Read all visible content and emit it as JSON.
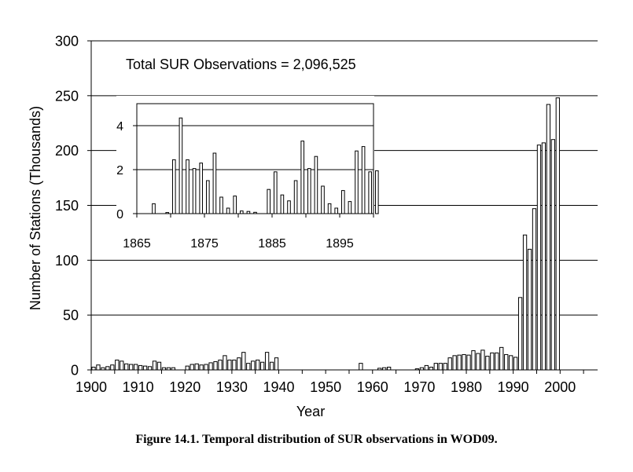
{
  "caption": "Figure 14.1. Temporal distribution of SUR observations in WOD09.",
  "chart_data": [
    {
      "type": "bar",
      "annotation": "Total SUR Observations = 2,096,525",
      "xlabel": "Year",
      "ylabel": "Number of Stations (Thousands)",
      "xlim": [
        1900,
        2008
      ],
      "ylim": [
        0,
        300
      ],
      "xticks": [
        1900,
        1910,
        1920,
        1930,
        1940,
        1950,
        1960,
        1970,
        1980,
        1990,
        2000
      ],
      "yticks": [
        0,
        50,
        100,
        150,
        200,
        250,
        300
      ],
      "grid": "horizontal",
      "x": [
        1900,
        1901,
        1902,
        1903,
        1904,
        1905,
        1906,
        1907,
        1908,
        1909,
        1910,
        1911,
        1912,
        1913,
        1914,
        1915,
        1916,
        1917,
        1920,
        1921,
        1922,
        1923,
        1924,
        1925,
        1926,
        1927,
        1928,
        1929,
        1930,
        1931,
        1932,
        1933,
        1934,
        1935,
        1936,
        1937,
        1938,
        1939,
        1957,
        1961,
        1962,
        1963,
        1969,
        1970,
        1971,
        1972,
        1973,
        1974,
        1975,
        1976,
        1977,
        1978,
        1979,
        1980,
        1981,
        1982,
        1983,
        1984,
        1985,
        1986,
        1987,
        1988,
        1989,
        1990,
        1991,
        1992,
        1993,
        1994,
        1995,
        1996,
        1997,
        1998,
        1999
      ],
      "values": [
        2.5,
        4.5,
        2,
        3,
        4.5,
        9,
        8,
        5.5,
        5,
        5,
        4,
        3.5,
        3,
        8,
        7,
        2,
        2,
        2,
        3.5,
        5,
        5.5,
        4.5,
        5,
        6.5,
        7.5,
        9,
        13,
        9,
        9,
        11,
        16,
        6,
        8,
        9,
        7,
        16,
        7,
        11,
        6,
        1.5,
        2,
        2.5,
        1,
        2,
        4,
        2.5,
        6,
        6,
        6,
        11,
        13,
        13.5,
        14,
        13.5,
        17.5,
        15,
        18,
        12.5,
        15.5,
        15.5,
        20.5,
        14,
        13,
        11.5,
        66,
        123,
        110,
        147,
        205,
        207,
        242,
        210,
        248
      ]
    },
    {
      "type": "bar",
      "xlim": [
        1865,
        1900
      ],
      "ylim": [
        0,
        5
      ],
      "xticks": [
        1865,
        1875,
        1885,
        1895
      ],
      "yticks": [
        0,
        2,
        4
      ],
      "grid": "horizontal",
      "x": [
        1867,
        1869,
        1870,
        1871,
        1872,
        1873,
        1874,
        1875,
        1876,
        1877,
        1878,
        1879,
        1880,
        1881,
        1882,
        1884,
        1885,
        1886,
        1887,
        1888,
        1889,
        1890,
        1891,
        1892,
        1893,
        1894,
        1895,
        1896,
        1897,
        1898,
        1899,
        1900
      ],
      "values": [
        0.45,
        0.05,
        2.45,
        4.35,
        2.45,
        2.05,
        2.3,
        1.5,
        2.75,
        0.75,
        0.25,
        0.8,
        0.12,
        0.1,
        0.06,
        1.1,
        1.9,
        0.85,
        0.58,
        1.5,
        3.3,
        2.05,
        2.6,
        1.25,
        0.45,
        0.25,
        1.05,
        0.55,
        2.85,
        3.05,
        1.9,
        1.95
      ]
    }
  ]
}
